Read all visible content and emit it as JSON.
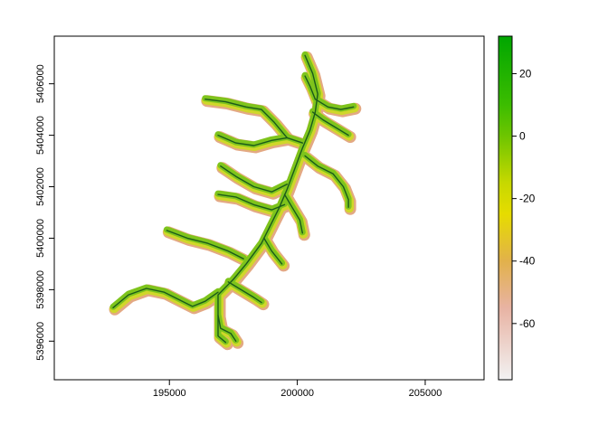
{
  "map": {
    "x_ticks": [
      {
        "value": 195000,
        "label": "195000"
      },
      {
        "value": 200000,
        "label": "200000"
      },
      {
        "value": 205000,
        "label": "205000"
      }
    ],
    "y_ticks": [
      {
        "value": 5396000,
        "label": "5396000"
      },
      {
        "value": 5398000,
        "label": "5398000"
      },
      {
        "value": 5400000,
        "label": "5400000"
      },
      {
        "value": 5402000,
        "label": "5402000"
      },
      {
        "value": 5404000,
        "label": "5404000"
      },
      {
        "value": 5406000,
        "label": "5406000"
      }
    ],
    "xlim": [
      190500,
      207300
    ],
    "ylim": [
      5394500,
      5407850
    ],
    "stream_color": "#1a5a1a",
    "buffer_colors": {
      "outer": "#e3a983",
      "mid": "#d0d72a",
      "inner": "#7ec41c"
    }
  },
  "legend": {
    "range": [
      -78,
      32
    ],
    "ticks": [
      {
        "value": 20,
        "label": "20"
      },
      {
        "value": 0,
        "label": "0"
      },
      {
        "value": -20,
        "label": "-20"
      },
      {
        "value": -40,
        "label": "-40"
      },
      {
        "value": -60,
        "label": "-60"
      }
    ],
    "color_stops": [
      {
        "value": 32,
        "color": "#00a600"
      },
      {
        "value": 10,
        "color": "#3cbd00"
      },
      {
        "value": 0,
        "color": "#6ec500"
      },
      {
        "value": -15,
        "color": "#c7d800"
      },
      {
        "value": -25,
        "color": "#e6dc00"
      },
      {
        "value": -40,
        "color": "#e2b14b"
      },
      {
        "value": -55,
        "color": "#e8b3a3"
      },
      {
        "value": -78,
        "color": "#f2f2f2"
      }
    ]
  }
}
